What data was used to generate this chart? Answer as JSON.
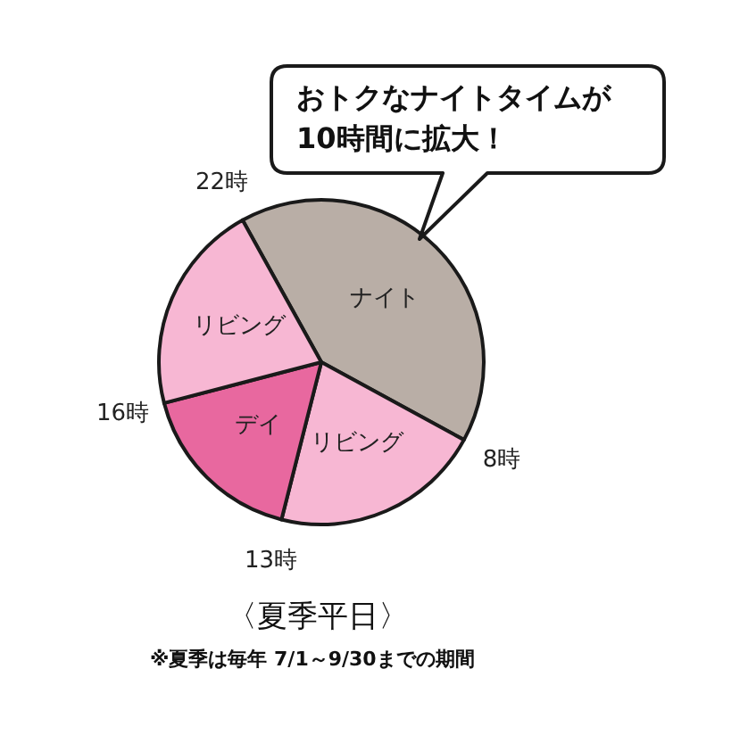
{
  "chart_data": {
    "type": "pie",
    "title": "〈夏季平日〉",
    "categories": [
      "ナイト",
      "リビング",
      "デイ",
      "リビング"
    ],
    "values": [
      41,
      21,
      17,
      21
    ],
    "colors": [
      "#b9aea6",
      "#f7b7d3",
      "#e8689f",
      "#f7b7d3"
    ],
    "annotations": [
      "おトクなナイトタイムが\n10時間に拡大！",
      "22時",
      "8時",
      "13時",
      "16時",
      "※夏季は毎年 7/1～9/30までの期間"
    ]
  }
}
